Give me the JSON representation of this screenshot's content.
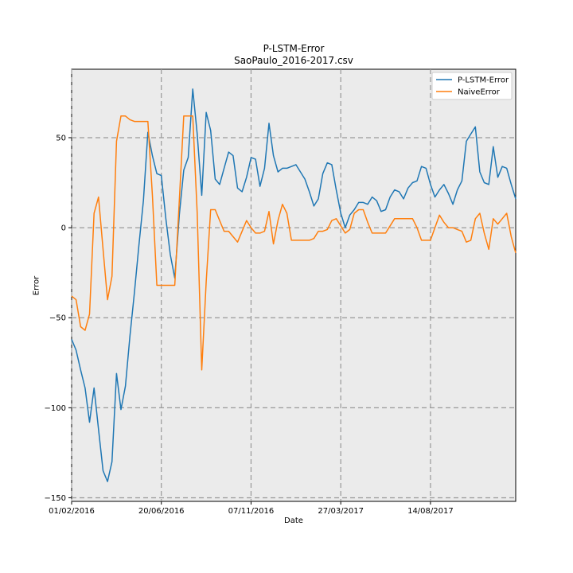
{
  "chart_data": {
    "type": "line",
    "title": "P-LSTM-Error",
    "subtitle": "SaoPaulo_2016-2017.csv",
    "xlabel": "Date",
    "ylabel": "Error",
    "x_ticks": [
      "01/02/2016",
      "20/06/2016",
      "07/11/2016",
      "27/03/2017",
      "14/08/2017"
    ],
    "x_tick_index": [
      0,
      20,
      40,
      60,
      80
    ],
    "y_ticks": [
      50,
      0,
      -50,
      -100,
      -150
    ],
    "xlim": [
      0,
      99
    ],
    "ylim": [
      -152,
      88
    ],
    "grid": true,
    "legend_position": "top-right",
    "series": [
      {
        "name": "P-LSTM-Error",
        "color": "#1f77b4",
        "values": [
          -62,
          -68,
          -79,
          -89,
          -108,
          -89,
          -112,
          -135,
          -141,
          -130,
          -81,
          -101,
          -88,
          -60,
          -36,
          -10,
          15,
          53,
          40,
          30,
          29,
          5,
          -15,
          -28,
          7,
          32,
          39,
          77,
          52,
          18,
          64,
          54,
          27,
          24,
          33,
          42,
          40,
          22,
          20,
          28,
          39,
          38,
          23,
          33,
          58,
          40,
          31,
          33,
          33,
          34,
          35,
          31,
          27,
          20,
          12,
          16,
          30,
          36,
          35,
          21,
          8,
          0,
          7,
          10,
          14,
          14,
          13,
          17,
          15,
          9,
          10,
          17,
          21,
          20,
          16,
          22,
          25,
          26,
          34,
          33,
          24,
          17,
          21,
          24,
          19,
          13,
          21,
          26,
          48,
          52,
          56,
          31,
          25,
          24,
          45,
          28,
          34,
          33,
          24,
          16
        ]
      },
      {
        "name": "NaiveError",
        "color": "#ff7f0e",
        "values": [
          -38,
          -40,
          -55,
          -57,
          -48,
          8,
          17,
          -12,
          -40,
          -27,
          48,
          62,
          62,
          60,
          59,
          59,
          59,
          59,
          18,
          -32,
          -32,
          -32,
          -32,
          -32,
          15,
          62,
          62,
          62,
          8,
          -79,
          -30,
          10,
          10,
          4,
          -2,
          -2,
          -5,
          -8,
          -2,
          4,
          0,
          -3,
          -3,
          -2,
          9,
          -9,
          4,
          13,
          8,
          -7,
          -7,
          -7,
          -7,
          -7,
          -6,
          -2,
          -2,
          -1,
          4,
          5,
          1,
          -3,
          -1,
          8,
          10,
          10,
          3,
          -3,
          -3,
          -3,
          -3,
          1,
          5,
          5,
          5,
          5,
          5,
          0,
          -7,
          -7,
          -7,
          0,
          7,
          3,
          0,
          0,
          -1,
          -2,
          -8,
          -7,
          5,
          8,
          -3,
          -12,
          5,
          2,
          5,
          8,
          -5,
          -14
        ]
      }
    ]
  }
}
